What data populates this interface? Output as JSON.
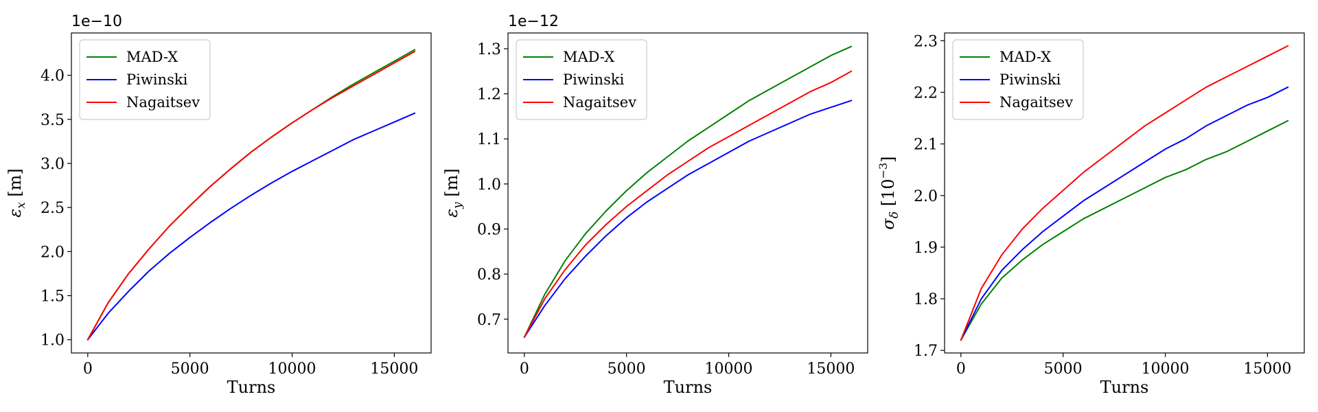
{
  "chart_data": [
    {
      "type": "line",
      "xlabel": "Turns",
      "ylabel_main": "ε",
      "ylabel_sub": "x",
      "ylabel_sup": "",
      "ylabel_unit": " [m]",
      "offset_text": "1e−10",
      "xlim": [
        -800,
        16800
      ],
      "ylim": [
        0.85,
        4.48
      ],
      "xticks": [
        0,
        5000,
        10000,
        15000
      ],
      "yticks": [
        1.0,
        1.5,
        2.0,
        2.5,
        3.0,
        3.5,
        4.0
      ],
      "ytick_decimals": 1,
      "legend_position": "upper left",
      "x": [
        0,
        1000,
        2000,
        3000,
        4000,
        5000,
        6000,
        7000,
        8000,
        9000,
        10000,
        11000,
        12000,
        13000,
        14000,
        15000,
        16000
      ],
      "series": [
        {
          "name": "MAD-X",
          "color": "#008000",
          "values": [
            1.0,
            1.42,
            1.75,
            2.03,
            2.29,
            2.52,
            2.74,
            2.94,
            3.13,
            3.3,
            3.46,
            3.61,
            3.76,
            3.9,
            4.03,
            4.16,
            4.29
          ]
        },
        {
          "name": "Piwinski",
          "color": "#0000ff",
          "values": [
            1.0,
            1.3,
            1.55,
            1.78,
            1.98,
            2.16,
            2.33,
            2.49,
            2.64,
            2.78,
            2.91,
            3.03,
            3.15,
            3.27,
            3.37,
            3.47,
            3.57
          ]
        },
        {
          "name": "Nagaitsev",
          "color": "#ff0000",
          "values": [
            1.0,
            1.42,
            1.75,
            2.03,
            2.29,
            2.52,
            2.74,
            2.94,
            3.13,
            3.3,
            3.46,
            3.61,
            3.75,
            3.88,
            4.01,
            4.14,
            4.27
          ]
        }
      ]
    },
    {
      "type": "line",
      "xlabel": "Turns",
      "ylabel_main": "ε",
      "ylabel_sub": "y",
      "ylabel_sup": "",
      "ylabel_unit": " [m]",
      "offset_text": "1e−12",
      "xlim": [
        -800,
        16800
      ],
      "ylim": [
        0.625,
        1.335
      ],
      "xticks": [
        0,
        5000,
        10000,
        15000
      ],
      "yticks": [
        0.7,
        0.8,
        0.9,
        1.0,
        1.1,
        1.2,
        1.3
      ],
      "ytick_decimals": 1,
      "legend_position": "upper left",
      "x": [
        0,
        1000,
        2000,
        3000,
        4000,
        5000,
        6000,
        7000,
        8000,
        9000,
        10000,
        11000,
        12000,
        13000,
        14000,
        15000,
        16000
      ],
      "series": [
        {
          "name": "MAD-X",
          "color": "#008000",
          "values": [
            0.66,
            0.755,
            0.83,
            0.89,
            0.94,
            0.985,
            1.025,
            1.06,
            1.095,
            1.125,
            1.155,
            1.185,
            1.21,
            1.235,
            1.26,
            1.285,
            1.305
          ]
        },
        {
          "name": "Piwinski",
          "color": "#0000ff",
          "values": [
            0.66,
            0.73,
            0.79,
            0.84,
            0.885,
            0.925,
            0.96,
            0.99,
            1.02,
            1.045,
            1.07,
            1.095,
            1.115,
            1.135,
            1.155,
            1.17,
            1.185
          ]
        },
        {
          "name": "Nagaitsev",
          "color": "#ff0000",
          "values": [
            0.66,
            0.745,
            0.81,
            0.865,
            0.91,
            0.95,
            0.985,
            1.02,
            1.05,
            1.08,
            1.105,
            1.13,
            1.155,
            1.18,
            1.205,
            1.225,
            1.25
          ]
        }
      ]
    },
    {
      "type": "line",
      "xlabel": "Turns",
      "ylabel_main": "σ",
      "ylabel_sub": "δ",
      "ylabel_sup": "−3",
      "ylabel_unit": "",
      "offset_text": "",
      "xlim": [
        -800,
        16800
      ],
      "ylim": [
        1.695,
        2.315
      ],
      "xticks": [
        0,
        5000,
        10000,
        15000
      ],
      "yticks": [
        1.7,
        1.8,
        1.9,
        2.0,
        2.1,
        2.2,
        2.3
      ],
      "ytick_decimals": 1,
      "legend_position": "upper left",
      "x": [
        0,
        1000,
        2000,
        3000,
        4000,
        5000,
        6000,
        7000,
        8000,
        9000,
        10000,
        11000,
        12000,
        13000,
        14000,
        15000,
        16000
      ],
      "series": [
        {
          "name": "MAD-X",
          "color": "#008000",
          "values": [
            1.72,
            1.79,
            1.84,
            1.875,
            1.905,
            1.93,
            1.955,
            1.975,
            1.995,
            2.015,
            2.035,
            2.05,
            2.07,
            2.085,
            2.105,
            2.125,
            2.145
          ]
        },
        {
          "name": "Piwinski",
          "color": "#0000ff",
          "values": [
            1.72,
            1.8,
            1.855,
            1.895,
            1.93,
            1.96,
            1.99,
            2.015,
            2.04,
            2.065,
            2.09,
            2.11,
            2.135,
            2.155,
            2.175,
            2.19,
            2.21
          ]
        },
        {
          "name": "Nagaitsev",
          "color": "#ff0000",
          "values": [
            1.72,
            1.82,
            1.885,
            1.935,
            1.975,
            2.01,
            2.045,
            2.075,
            2.105,
            2.135,
            2.16,
            2.185,
            2.21,
            2.23,
            2.25,
            2.27,
            2.29
          ]
        }
      ]
    }
  ]
}
